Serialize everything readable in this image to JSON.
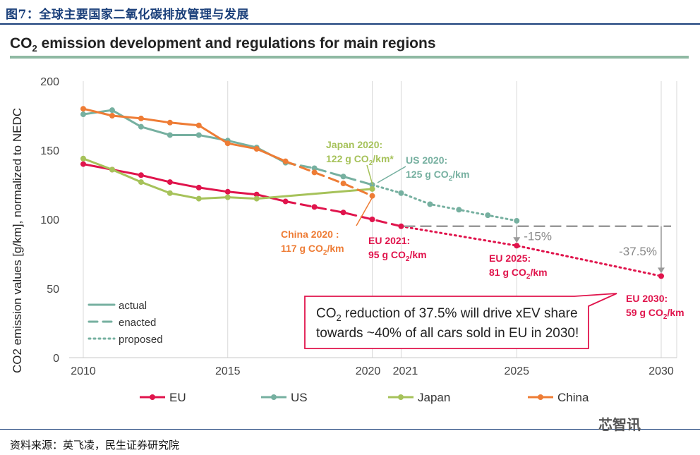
{
  "figure_caption": "图7：全球主要国家二氧化碳排放管理与发展",
  "source": "资料来源：英飞凌，民生证券研究院",
  "watermark": "芯智讯",
  "colors": {
    "EU": "#e0144c",
    "US": "#76b0a0",
    "Japan": "#a6c25a",
    "China": "#ee7c35",
    "box": "#e0144c",
    "arrow": "#999999"
  },
  "chart_data": {
    "type": "line",
    "title": "CO2 emission development and regulations for main regions",
    "title_main": "CO",
    "title_sub": "2",
    "title_rest": " emission development and regulations for main regions",
    "ylabel": "CO2 emission values [g/km], normalized to NEDC",
    "xlabel": "",
    "ylim": [
      0,
      200
    ],
    "xlim": [
      2010,
      2030
    ],
    "yticks": [
      0,
      50,
      100,
      150,
      200
    ],
    "xticks": [
      2010,
      2015,
      2020,
      2021,
      2025,
      2030
    ],
    "grid": "vertical",
    "series": [
      {
        "name": "EU",
        "color": "#e0144c",
        "actual": [
          [
            2010,
            140
          ],
          [
            2011,
            136
          ],
          [
            2012,
            132
          ],
          [
            2013,
            127
          ],
          [
            2014,
            123
          ],
          [
            2015,
            120
          ],
          [
            2016,
            118
          ],
          [
            2017,
            113
          ]
        ],
        "enacted": [
          [
            2017,
            113
          ],
          [
            2018,
            109
          ],
          [
            2019,
            105
          ],
          [
            2020,
            100
          ],
          [
            2021,
            95
          ]
        ],
        "proposed": [
          [
            2021,
            95
          ],
          [
            2025,
            81
          ],
          [
            2030,
            59
          ]
        ]
      },
      {
        "name": "US",
        "color": "#76b0a0",
        "actual": [
          [
            2010,
            176
          ],
          [
            2011,
            179
          ],
          [
            2012,
            167
          ],
          [
            2013,
            161
          ],
          [
            2014,
            161
          ],
          [
            2015,
            157
          ],
          [
            2016,
            152
          ],
          [
            2017,
            141
          ]
        ],
        "enacted": [
          [
            2017,
            141
          ],
          [
            2018,
            137
          ],
          [
            2019,
            131
          ],
          [
            2020,
            125
          ]
        ],
        "proposed": [
          [
            2020,
            125
          ],
          [
            2021,
            119
          ],
          [
            2022,
            111
          ],
          [
            2023,
            107
          ],
          [
            2024,
            103
          ],
          [
            2025,
            99
          ]
        ]
      },
      {
        "name": "Japan",
        "color": "#a6c25a",
        "actual": [
          [
            2010,
            144
          ],
          [
            2011,
            136
          ],
          [
            2012,
            127
          ],
          [
            2013,
            119
          ],
          [
            2014,
            115
          ],
          [
            2015,
            116
          ],
          [
            2016,
            115
          ],
          [
            2020,
            122
          ]
        ],
        "enacted": [],
        "proposed": []
      },
      {
        "name": "China",
        "color": "#ee7c35",
        "actual": [
          [
            2010,
            180
          ],
          [
            2011,
            175
          ],
          [
            2012,
            173
          ],
          [
            2013,
            170
          ],
          [
            2014,
            168
          ],
          [
            2015,
            155
          ],
          [
            2016,
            151
          ],
          [
            2017,
            142
          ]
        ],
        "enacted": [
          [
            2017,
            142
          ],
          [
            2018,
            134
          ],
          [
            2019,
            126
          ],
          [
            2020,
            117
          ]
        ],
        "proposed": []
      }
    ],
    "line_styles": [
      "actual",
      "enacted",
      "proposed"
    ],
    "legend_position": "bottom",
    "annotations": {
      "japan_2020": {
        "line1": "Japan 2020:",
        "line2": "122 g CO",
        "sub": "2",
        "line2_end": "/km*"
      },
      "us_2020": {
        "line1": "US 2020:",
        "line2": "125 g CO",
        "sub": "2",
        "line2_end": "/km"
      },
      "china_2020": {
        "line1": "China 2020 :",
        "line2": "117 g CO",
        "sub": "2",
        "line2_end": "/km"
      },
      "eu_2021": {
        "line1": "EU 2021:",
        "line2": "95 g CO",
        "sub": "2",
        "line2_end": "/km"
      },
      "eu_2025": {
        "line1": "EU 2025:",
        "line2": "81 g CO",
        "sub": "2",
        "line2_end": "/km"
      },
      "eu_2030": {
        "line1": "EU 2030:",
        "line2": "59 g CO",
        "sub": "2",
        "line2_end": "/km"
      },
      "pct15": "-15%",
      "pct375": "-37.5%",
      "box_line1a": "CO",
      "box_line1sub": "2",
      "box_line1b": " reduction of 37.5% will drive xEV share",
      "box_line2": "towards ~40% of all cars sold in EU in 2030!"
    }
  }
}
